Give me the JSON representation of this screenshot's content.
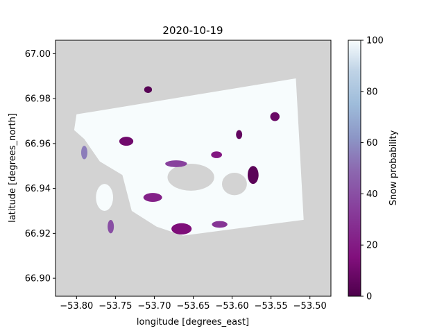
{
  "chart_data": {
    "type": "heatmap",
    "title": "2020-10-19",
    "xlabel": "longitude [degrees_east]",
    "ylabel": "latitude [degrees_north]",
    "colorbar_label": "Snow probability",
    "xlim": [
      -53.827,
      -53.473
    ],
    "ylim": [
      66.892,
      67.006
    ],
    "x_ticks": [
      -53.8,
      -53.75,
      -53.7,
      -53.65,
      -53.6,
      -53.55,
      -53.5
    ],
    "x_tick_labels": [
      "−53.80",
      "−53.75",
      "−53.70",
      "−53.65",
      "−53.60",
      "−53.55",
      "−53.50"
    ],
    "y_ticks": [
      66.9,
      66.92,
      66.94,
      66.96,
      66.98,
      67.0
    ],
    "y_tick_labels": [
      "66.90",
      "66.92",
      "66.94",
      "66.96",
      "66.98",
      "67.00"
    ],
    "colorbar_range": [
      0,
      100
    ],
    "colorbar_ticks": [
      0,
      20,
      40,
      60,
      80,
      100
    ],
    "colorbar_tick_labels": [
      "0",
      "20",
      "40",
      "60",
      "80",
      "100"
    ],
    "colormap": "BuPu_r",
    "nodata_color": "#d3d3d3",
    "snow_swath": {
      "value": 100,
      "polygon_lonlat": [
        [
          -53.8,
          66.973
        ],
        [
          -53.518,
          66.989
        ],
        [
          -53.508,
          66.926
        ],
        [
          -53.663,
          66.919
        ],
        [
          -53.697,
          66.923
        ],
        [
          -53.729,
          66.93
        ],
        [
          -53.741,
          66.946
        ],
        [
          -53.77,
          66.952
        ],
        [
          -53.79,
          66.962
        ],
        [
          -53.803,
          66.966
        ]
      ]
    },
    "snow_islands": [
      {
        "value": 100,
        "center": [
          -53.764,
          66.936
        ],
        "radius": [
          0.011,
          0.006
        ]
      }
    ],
    "fjord_water": [
      {
        "center": [
          -53.653,
          66.945
        ],
        "radius": [
          0.03,
          0.006
        ]
      },
      {
        "center": [
          -53.597,
          66.942
        ],
        "radius": [
          0.016,
          0.005
        ]
      }
    ],
    "low_probability_patches": [
      {
        "value": 3,
        "center": [
          -53.708,
          66.984
        ],
        "radius": [
          0.005,
          0.0015
        ]
      },
      {
        "value": 4,
        "center": [
          -53.573,
          66.946
        ],
        "radius": [
          0.007,
          0.004
        ]
      },
      {
        "value": 6,
        "center": [
          -53.591,
          66.964
        ],
        "radius": [
          0.004,
          0.002
        ]
      },
      {
        "value": 8,
        "center": [
          -53.545,
          66.972
        ],
        "radius": [
          0.006,
          0.002
        ]
      },
      {
        "value": 10,
        "center": [
          -53.736,
          66.961
        ],
        "radius": [
          0.009,
          0.002
        ]
      },
      {
        "value": 14,
        "center": [
          -53.665,
          66.922
        ],
        "radius": [
          0.013,
          0.0025
        ]
      },
      {
        "value": 22,
        "center": [
          -53.702,
          66.936
        ],
        "radius": [
          0.012,
          0.002
        ]
      },
      {
        "value": 30,
        "center": [
          -53.616,
          66.924
        ],
        "radius": [
          0.01,
          0.0015
        ]
      },
      {
        "value": 40,
        "center": [
          -53.756,
          66.923
        ],
        "radius": [
          0.004,
          0.003
        ]
      },
      {
        "value": 55,
        "center": [
          -53.79,
          66.956
        ],
        "radius": [
          0.004,
          0.003
        ]
      },
      {
        "value": 35,
        "center": [
          -53.672,
          66.951
        ],
        "radius": [
          0.014,
          0.0015
        ]
      },
      {
        "value": 18,
        "center": [
          -53.62,
          66.955
        ],
        "radius": [
          0.007,
          0.0015
        ]
      }
    ]
  }
}
